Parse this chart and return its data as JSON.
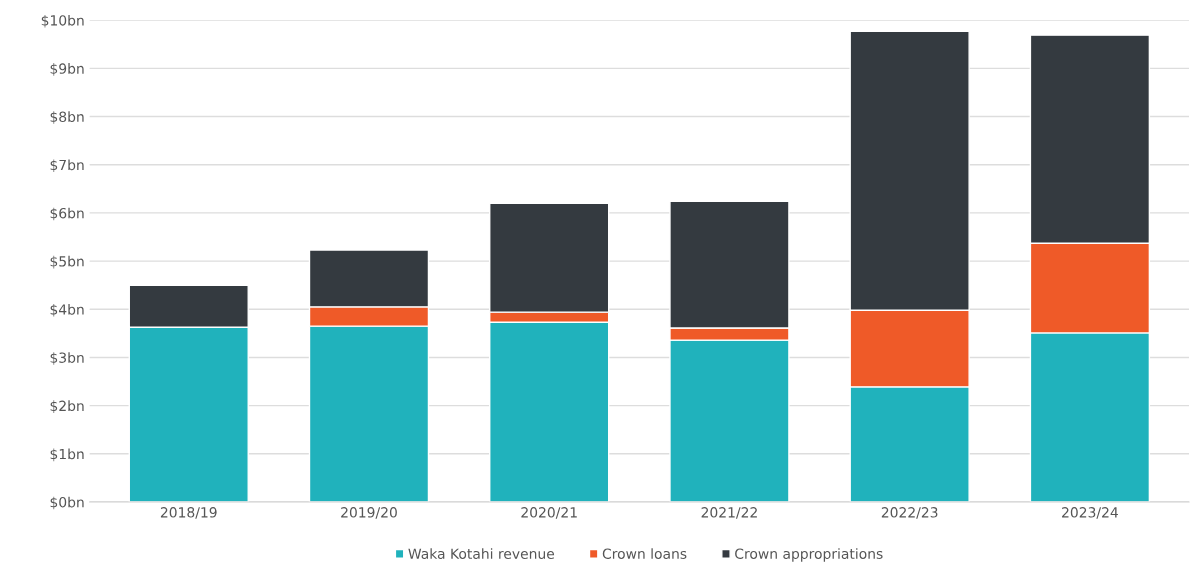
{
  "chart_data": {
    "type": "bar",
    "stacked": true,
    "categories": [
      "2018/19",
      "2019/20",
      "2020/21",
      "2021/22",
      "2022/23",
      "2023/24"
    ],
    "series": [
      {
        "name": "Waka Kotahi revenue",
        "color": "#20b2bc",
        "values": [
          3.63,
          3.65,
          3.73,
          3.36,
          2.39,
          3.51
        ]
      },
      {
        "name": "Crown loans",
        "color": "#ef5a28",
        "values": [
          0,
          0.4,
          0.21,
          0.25,
          1.59,
          1.86
        ]
      },
      {
        "name": "Crown appropriations",
        "color": "#343a40",
        "values": [
          0.87,
          1.18,
          2.26,
          2.63,
          5.79,
          4.32
        ]
      }
    ],
    "ylim": [
      0,
      10
    ],
    "yticks": [
      {
        "value": 0,
        "label": "$0bn"
      },
      {
        "value": 1,
        "label": "$1bn"
      },
      {
        "value": 2,
        "label": "$2bn"
      },
      {
        "value": 3,
        "label": "$3bn"
      },
      {
        "value": 4,
        "label": "$4bn"
      },
      {
        "value": 5,
        "label": "$5bn"
      },
      {
        "value": 6,
        "label": "$6bn"
      },
      {
        "value": 7,
        "label": "$7bn"
      },
      {
        "value": 8,
        "label": "$8bn"
      },
      {
        "value": 9,
        "label": "$9bn"
      },
      {
        "value": 10,
        "label": "$10bn"
      }
    ],
    "grid": "y",
    "legend": "bottom"
  }
}
